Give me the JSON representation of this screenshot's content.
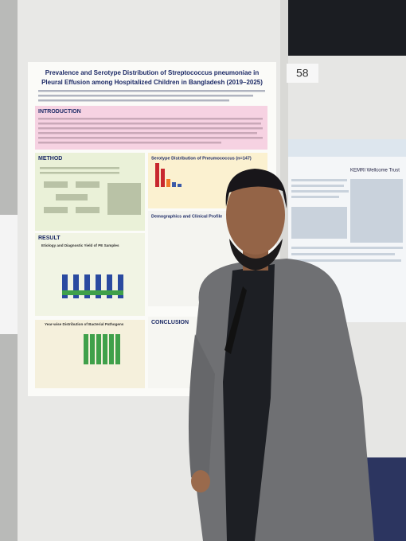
{
  "board_number": "58",
  "poster": {
    "title_line_1": "Prevalence and Serotype Distribution of Streptococcus pneumoniae in",
    "title_line_2": "Pleural Effusion among Hospitalized Children in Bangladesh (2019–2025)",
    "sections": {
      "introduction": "INTRODUCTION",
      "method": "METHOD",
      "result": "RESULT",
      "conclusion": "CONCLUSION",
      "etiology": "Etiology and Diagnostic Yield of PE Samples",
      "serotype": "Serotype Distribution of Pneumococcus (n=147)",
      "demographics": "Demographics and Clinical Profile",
      "yearwise": "Year-wise Distribution of Bacterial Pathogens"
    }
  },
  "side_poster": {
    "logo": "KEMRI Wellcome Trust"
  }
}
